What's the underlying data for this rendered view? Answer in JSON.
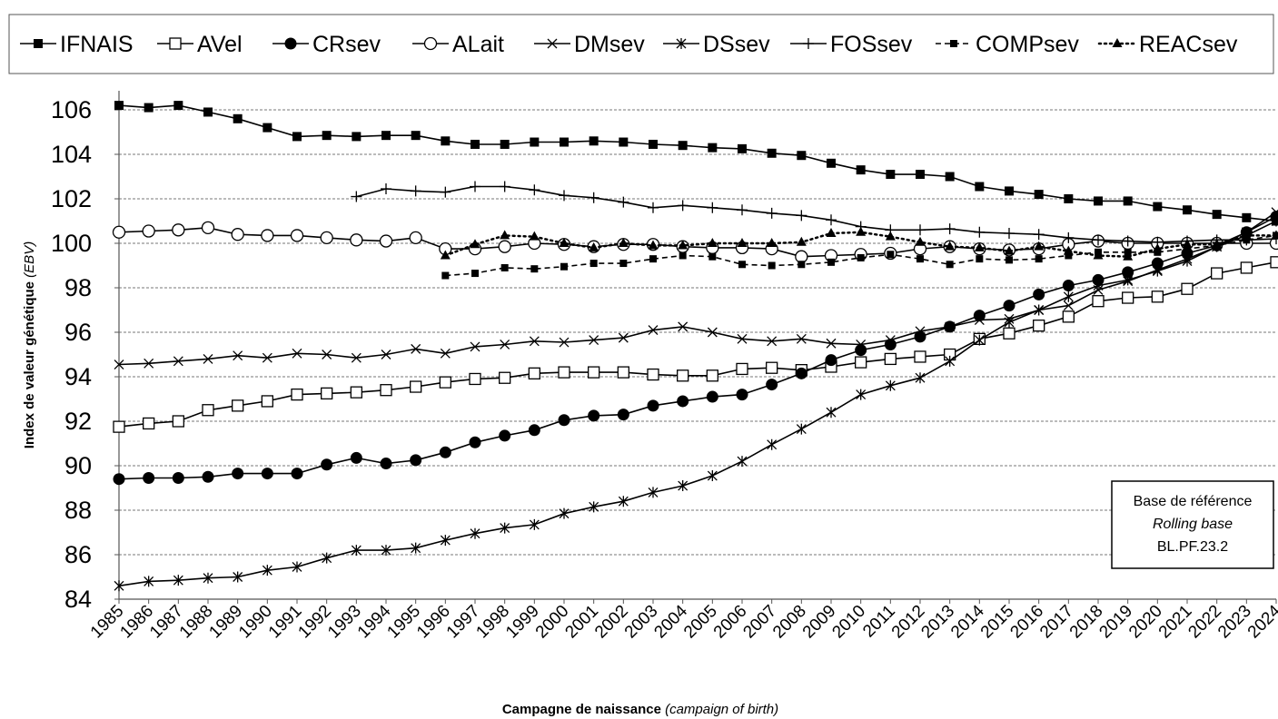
{
  "chart_data": {
    "type": "line",
    "xlabel": "Campagne de naissance",
    "xlabel_en": "(campaign of birth)",
    "ylabel": "Index de valeur génétique",
    "ylabel_en": "(EBV)",
    "ylim": [
      84,
      107
    ],
    "yticks": [
      84,
      86,
      88,
      90,
      92,
      94,
      96,
      98,
      100,
      102,
      104,
      106
    ],
    "grid": "horizontal-dashed",
    "legend_position": "top",
    "x": [
      "1985",
      "1986",
      "1987",
      "1988",
      "1989",
      "1990",
      "1991",
      "1992",
      "1993",
      "1994",
      "1995",
      "1996",
      "1997",
      "1998",
      "1999",
      "2000",
      "2001",
      "2002",
      "2003",
      "2004",
      "2005",
      "2006",
      "2007",
      "2008",
      "2009",
      "2010",
      "2011",
      "2012",
      "2013",
      "2014",
      "2015",
      "2016",
      "2017",
      "2018",
      "2019",
      "2020",
      "2021",
      "2022",
      "2023",
      "2024"
    ],
    "annotation": {
      "line1": "Base de référence",
      "line2": "Rolling base",
      "line3": "BL.PF.23.2"
    },
    "series": [
      {
        "name": "IFNAIS",
        "marker": "filled-square",
        "dash": "solid",
        "values": [
          106.2,
          106.1,
          106.2,
          105.9,
          105.6,
          105.2,
          104.8,
          104.85,
          104.8,
          104.85,
          104.85,
          104.6,
          104.45,
          104.45,
          104.55,
          104.55,
          104.6,
          104.55,
          104.45,
          104.4,
          104.3,
          104.25,
          104.05,
          103.95,
          103.6,
          103.3,
          103.1,
          103.1,
          103.0,
          102.55,
          102.35,
          102.2,
          102.0,
          101.9,
          101.9,
          101.65,
          101.5,
          101.3,
          101.15,
          101.0
        ]
      },
      {
        "name": "AVel",
        "marker": "open-square",
        "dash": "solid",
        "values": [
          91.75,
          91.9,
          92.0,
          92.5,
          92.7,
          92.9,
          93.2,
          93.25,
          93.3,
          93.4,
          93.55,
          93.75,
          93.9,
          93.95,
          94.15,
          94.2,
          94.2,
          94.2,
          94.1,
          94.05,
          94.05,
          94.35,
          94.4,
          94.3,
          94.45,
          94.65,
          94.8,
          94.9,
          95.0,
          95.7,
          95.95,
          96.3,
          96.7,
          97.4,
          97.55,
          97.6,
          97.95,
          98.65,
          98.9,
          99.15
        ]
      },
      {
        "name": "CRsev",
        "marker": "filled-circle",
        "dash": "solid",
        "values": [
          89.4,
          89.45,
          89.45,
          89.5,
          89.65,
          89.65,
          89.65,
          90.05,
          90.35,
          90.1,
          90.25,
          90.6,
          91.05,
          91.35,
          91.6,
          92.05,
          92.25,
          92.3,
          92.7,
          92.9,
          93.1,
          93.2,
          93.65,
          94.15,
          94.75,
          95.2,
          95.45,
          95.8,
          96.25,
          96.75,
          97.2,
          97.7,
          98.1,
          98.35,
          98.7,
          99.1,
          99.55,
          99.9,
          100.5,
          101.2
        ]
      },
      {
        "name": "ALait",
        "marker": "open-circle",
        "dash": "solid",
        "values": [
          100.5,
          100.55,
          100.6,
          100.7,
          100.4,
          100.35,
          100.35,
          100.25,
          100.15,
          100.1,
          100.25,
          99.75,
          99.75,
          99.85,
          100.0,
          99.95,
          99.85,
          99.95,
          99.95,
          99.85,
          99.8,
          99.8,
          99.75,
          99.4,
          99.45,
          99.5,
          99.55,
          99.75,
          99.85,
          99.75,
          99.7,
          99.75,
          99.95,
          100.1,
          100.0,
          100.0,
          100.0,
          100.0,
          100.0,
          100.0
        ]
      },
      {
        "name": "DMsev",
        "marker": "x",
        "dash": "solid",
        "values": [
          94.55,
          94.6,
          94.7,
          94.8,
          94.95,
          94.85,
          95.05,
          95.0,
          94.85,
          95.0,
          95.25,
          95.05,
          95.35,
          95.45,
          95.6,
          95.55,
          95.65,
          95.75,
          96.1,
          96.25,
          96.0,
          95.7,
          95.6,
          95.7,
          95.5,
          95.45,
          95.65,
          96.05,
          96.25,
          96.55,
          96.6,
          97.0,
          97.2,
          97.9,
          98.3,
          98.8,
          99.3,
          99.85,
          100.5,
          101.4
        ]
      },
      {
        "name": "DSsev",
        "marker": "asterisk",
        "dash": "solid",
        "values": [
          84.6,
          84.8,
          84.85,
          84.95,
          85.0,
          85.3,
          85.45,
          85.85,
          86.2,
          86.2,
          86.3,
          86.65,
          86.95,
          87.2,
          87.35,
          87.85,
          88.15,
          88.4,
          88.8,
          89.1,
          89.55,
          90.2,
          90.95,
          91.65,
          92.4,
          93.2,
          93.6,
          93.95,
          94.7,
          95.65,
          96.45,
          97.0,
          97.6,
          98.1,
          98.35,
          98.75,
          99.2,
          99.85,
          100.35,
          101.0
        ]
      },
      {
        "name": "FOSsev",
        "marker": "plus",
        "dash": "solid",
        "values": [
          null,
          null,
          null,
          null,
          null,
          null,
          null,
          null,
          102.1,
          102.45,
          102.35,
          102.3,
          102.55,
          102.55,
          102.4,
          102.15,
          102.05,
          101.85,
          101.6,
          101.7,
          101.6,
          101.5,
          101.35,
          101.25,
          101.05,
          100.75,
          100.6,
          100.6,
          100.65,
          100.5,
          100.45,
          100.4,
          100.25,
          100.15,
          100.1,
          100.05,
          100.1,
          100.15,
          100.15,
          100.2
        ]
      },
      {
        "name": "COMPsev",
        "marker": "filled-square-small",
        "dash": "dashed",
        "values": [
          null,
          null,
          null,
          null,
          null,
          null,
          null,
          null,
          null,
          null,
          null,
          98.55,
          98.65,
          98.9,
          98.85,
          98.95,
          99.1,
          99.1,
          99.3,
          99.45,
          99.4,
          99.05,
          99.0,
          99.05,
          99.15,
          99.35,
          99.5,
          99.3,
          99.05,
          99.3,
          99.25,
          99.3,
          99.45,
          99.6,
          99.6,
          99.6,
          99.75,
          99.9,
          100.15,
          100.35
        ]
      },
      {
        "name": "REACsev",
        "marker": "triangle",
        "dash": "dotted",
        "values": [
          null,
          null,
          null,
          null,
          null,
          null,
          null,
          null,
          null,
          null,
          null,
          99.45,
          99.95,
          100.35,
          100.3,
          100.0,
          99.8,
          100.0,
          99.9,
          99.9,
          100.0,
          100.0,
          100.0,
          100.05,
          100.45,
          100.5,
          100.3,
          100.05,
          99.85,
          99.8,
          99.65,
          99.85,
          99.65,
          99.45,
          99.4,
          99.75,
          99.95,
          99.95,
          100.35,
          100.35
        ]
      }
    ]
  }
}
